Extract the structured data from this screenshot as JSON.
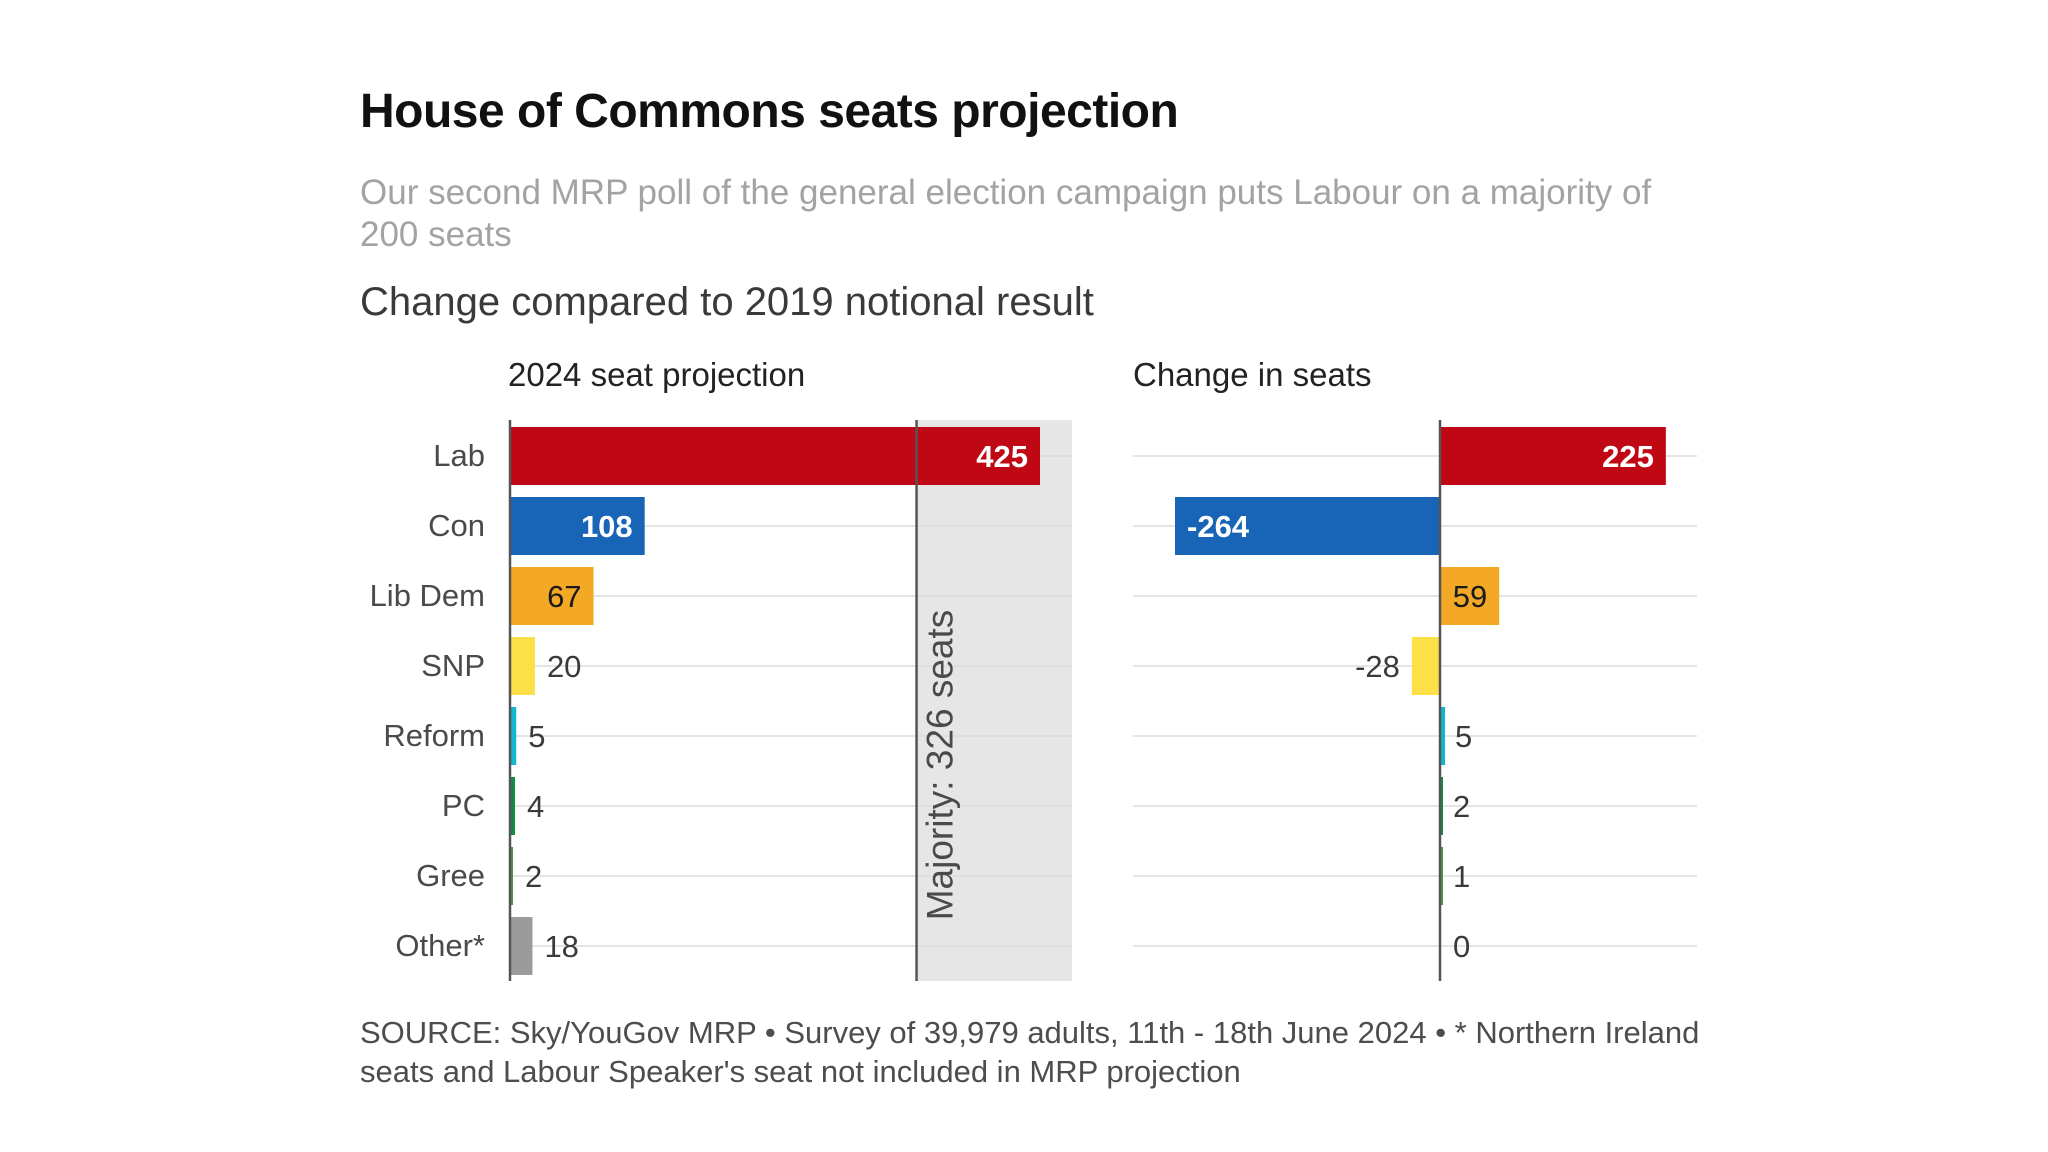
{
  "title": "House of Commons seats projection",
  "subtitle": "Our second MRP poll of the general election campaign puts Labour on a majority of 200 seats",
  "note": "Change compared to 2019 notional result",
  "source": "SOURCE: Sky/YouGov MRP • Survey of 39,979 adults, 11th - 18th June 2024 • * Northern Ireland seats and Labour Speaker's seat not included in MRP projection",
  "chart_data": [
    {
      "type": "bar",
      "orientation": "horizontal",
      "title": "2024 seat projection",
      "categories": [
        "Lab",
        "Con",
        "Lib Dem",
        "SNP",
        "Reform",
        "PC",
        "Gree",
        "Other*"
      ],
      "values": [
        425,
        108,
        67,
        20,
        5,
        4,
        2,
        18
      ],
      "colors": [
        "#c00814",
        "#1865b8",
        "#f3a826",
        "#fde047",
        "#12b6cf",
        "#138a43",
        "#4c9a3c",
        "#9b9b9b"
      ],
      "xlim": [
        0,
        450
      ],
      "reference": {
        "label": "Majority: 326 seats",
        "value": 326,
        "shade_color": "#e6e6e6"
      },
      "grid": true
    },
    {
      "type": "bar",
      "orientation": "horizontal",
      "title": "Change in seats",
      "categories": [
        "Lab",
        "Con",
        "Lib Dem",
        "SNP",
        "Reform",
        "PC",
        "Gree",
        "Other*"
      ],
      "values": [
        225,
        -264,
        59,
        -28,
        5,
        2,
        1,
        0
      ],
      "colors": [
        "#c00814",
        "#1865b8",
        "#f3a826",
        "#fde047",
        "#12b6cf",
        "#138a43",
        "#4c9a3c",
        "#9b9b9b"
      ],
      "xlim": [
        -264,
        225
      ],
      "grid": true
    }
  ]
}
